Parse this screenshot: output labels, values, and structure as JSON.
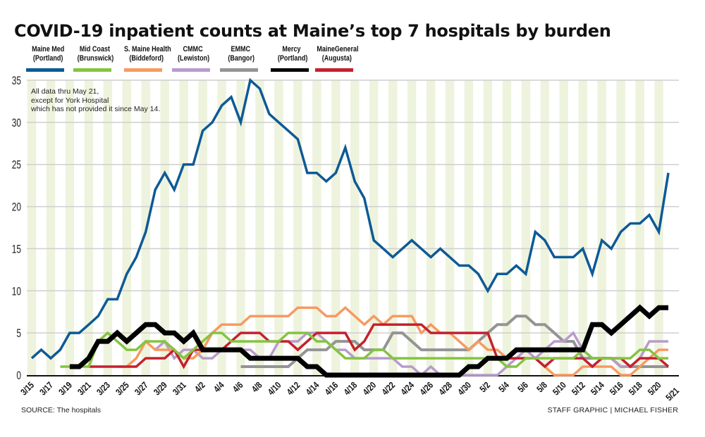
{
  "header": {
    "title": "COVID-19 inpatient counts at Maine’s top 7 hospitals by burden"
  },
  "note": {
    "lines": [
      "All data thru May 21,",
      "except for York Hospital",
      "which has not provided it since May 14."
    ]
  },
  "footer": {
    "source": "SOURCE: The hospitals",
    "credit": "STAFF GRAPHIC | MICHAEL FISHER"
  },
  "chart_data": {
    "type": "line",
    "title": "COVID-19 inpatient counts at Maine’s top 7 hospitals by burden",
    "xlabel": "",
    "ylabel": "",
    "ylim": [
      0,
      35
    ],
    "yticks": [
      0,
      5,
      10,
      15,
      20,
      25,
      30,
      35
    ],
    "grid": true,
    "legend_position": "top",
    "x": [
      "3/15",
      "3/16",
      "3/17",
      "3/18",
      "3/19",
      "3/20",
      "3/21",
      "3/22",
      "3/23",
      "3/24",
      "3/25",
      "3/26",
      "3/27",
      "3/28",
      "3/29",
      "3/30",
      "3/31",
      "4/1",
      "4/2",
      "4/3",
      "4/4",
      "4/5",
      "4/6",
      "4/7",
      "4/8",
      "4/9",
      "4/10",
      "4/11",
      "4/12",
      "4/13",
      "4/14",
      "4/15",
      "4/16",
      "4/17",
      "4/18",
      "4/19",
      "4/20",
      "4/21",
      "4/22",
      "4/23",
      "4/24",
      "4/25",
      "4/26",
      "4/27",
      "4/28",
      "4/29",
      "4/30",
      "5/1",
      "5/2",
      "5/3",
      "5/4",
      "5/5",
      "5/6",
      "5/7",
      "5/8",
      "5/9",
      "5/10",
      "5/11",
      "5/12",
      "5/13",
      "5/14",
      "5/15",
      "5/16",
      "5/17",
      "5/18",
      "5/19",
      "5/20",
      "5/21"
    ],
    "xticks": [
      "3/15",
      "3/17",
      "3/19",
      "3/21",
      "3/23",
      "3/25",
      "3/27",
      "3/29",
      "3/31",
      "4/2",
      "4/4",
      "4/6",
      "4/8",
      "4/10",
      "4/12",
      "4/14",
      "4/16",
      "4/18",
      "4/20",
      "4/22",
      "4/24",
      "4/26",
      "4/28",
      "4/30",
      "5/2",
      "5/4",
      "5/6",
      "5/8",
      "5/10",
      "5/12",
      "5/14",
      "5/16",
      "5/18",
      "5/20",
      "5/21"
    ],
    "series": [
      {
        "name": "Maine Med",
        "sub": "(Portland)",
        "color": "#0d5a96",
        "width": 3.5,
        "values": [
          2,
          3,
          2,
          3,
          5,
          5,
          6,
          7,
          9,
          9,
          12,
          14,
          17,
          22,
          24,
          22,
          25,
          25,
          29,
          30,
          32,
          33,
          30,
          35,
          34,
          31,
          30,
          29,
          28,
          24,
          24,
          23,
          24,
          27,
          23,
          21,
          16,
          15,
          14,
          15,
          16,
          15,
          14,
          15,
          14,
          13,
          13,
          12,
          10,
          12,
          12,
          13,
          12,
          17,
          16,
          14,
          14,
          14,
          15,
          12,
          16,
          15,
          17,
          18,
          18,
          19,
          17,
          24
        ]
      },
      {
        "name": "Mid Coast",
        "sub": "(Brunswick)",
        "color": "#84c441",
        "width": 3.5,
        "values": [
          null,
          null,
          null,
          1,
          1,
          1,
          1,
          4,
          5,
          4,
          3,
          3,
          4,
          4,
          4,
          3,
          2,
          3,
          4,
          5,
          5,
          4,
          4,
          4,
          4,
          4,
          4,
          5,
          5,
          5,
          4,
          4,
          3,
          2,
          2,
          2,
          3,
          3,
          2,
          2,
          2,
          2,
          2,
          2,
          2,
          2,
          2,
          2,
          2,
          2,
          1,
          1,
          2,
          2,
          2,
          2,
          2,
          2,
          3,
          2,
          2,
          2,
          2,
          2,
          3,
          3,
          2,
          2
        ]
      },
      {
        "name": "S. Maine Health",
        "sub": "(Biddeford)",
        "color": "#f79a62",
        "width": 3.5,
        "values": [
          null,
          null,
          null,
          null,
          null,
          null,
          null,
          null,
          null,
          1,
          1,
          2,
          4,
          3,
          3,
          3,
          2,
          2,
          3,
          5,
          6,
          6,
          6,
          7,
          7,
          7,
          7,
          7,
          8,
          8,
          8,
          7,
          7,
          8,
          7,
          6,
          7,
          6,
          7,
          7,
          7,
          5,
          6,
          5,
          5,
          4,
          3,
          4,
          3,
          3,
          2,
          2,
          2,
          2,
          1,
          0,
          0,
          0,
          1,
          1,
          1,
          1,
          0,
          0,
          1,
          2,
          3,
          3
        ]
      },
      {
        "name": "CMMC",
        "sub": "(Lewiston)",
        "color": "#b99bcb",
        "width": 3.5,
        "values": [
          null,
          null,
          null,
          null,
          null,
          null,
          null,
          null,
          null,
          null,
          null,
          null,
          null,
          3,
          4,
          2,
          3,
          3,
          2,
          2,
          3,
          3,
          3,
          3,
          2,
          2,
          4,
          4,
          4,
          5,
          5,
          4,
          3,
          3,
          2,
          2,
          2,
          2,
          2,
          1,
          1,
          0,
          1,
          0,
          0,
          0,
          0,
          0,
          0,
          0,
          1,
          2,
          3,
          2,
          3,
          4,
          4,
          5,
          3,
          2,
          2,
          2,
          1,
          1,
          2,
          4,
          4,
          4
        ]
      },
      {
        "name": "EMMC",
        "sub": "(Bangor)",
        "color": "#949494",
        "width": 4,
        "values": [
          null,
          null,
          null,
          null,
          null,
          null,
          null,
          null,
          null,
          null,
          null,
          null,
          null,
          null,
          null,
          null,
          null,
          null,
          null,
          null,
          null,
          null,
          1,
          1,
          1,
          1,
          1,
          1,
          2,
          3,
          3,
          3,
          4,
          4,
          4,
          3,
          3,
          3,
          5,
          5,
          4,
          3,
          3,
          3,
          3,
          3,
          3,
          4,
          5,
          6,
          6,
          7,
          7,
          6,
          6,
          5,
          4,
          4,
          2,
          2,
          2,
          2,
          1,
          1,
          1,
          1,
          1,
          1
        ]
      },
      {
        "name": "Mercy",
        "sub": "(Portland)",
        "color": "#000000",
        "width": 7,
        "values": [
          null,
          null,
          null,
          null,
          1,
          1,
          2,
          4,
          4,
          5,
          4,
          5,
          6,
          6,
          5,
          5,
          4,
          5,
          3,
          3,
          3,
          3,
          3,
          2,
          2,
          2,
          2,
          2,
          2,
          1,
          1,
          0,
          0,
          0,
          0,
          0,
          0,
          0,
          0,
          0,
          0,
          0,
          0,
          0,
          0,
          0,
          1,
          1,
          2,
          2,
          2,
          3,
          3,
          3,
          3,
          3,
          3,
          3,
          3,
          6,
          6,
          5,
          6,
          7,
          8,
          7,
          8,
          8
        ]
      },
      {
        "name": "MaineGeneral",
        "sub": "(Augusta)",
        "color": "#c5202e",
        "width": 3.5,
        "values": [
          null,
          null,
          null,
          null,
          null,
          null,
          1,
          1,
          1,
          1,
          1,
          1,
          2,
          2,
          2,
          3,
          1,
          3,
          3,
          3,
          3,
          4,
          5,
          5,
          5,
          4,
          4,
          4,
          3,
          4,
          5,
          5,
          5,
          5,
          3,
          4,
          6,
          6,
          6,
          6,
          6,
          6,
          5,
          5,
          5,
          5,
          5,
          5,
          5,
          2,
          2,
          2,
          2,
          2,
          1,
          2,
          2,
          2,
          2,
          1,
          2,
          2,
          2,
          1,
          2,
          2,
          2,
          1
        ]
      }
    ]
  }
}
